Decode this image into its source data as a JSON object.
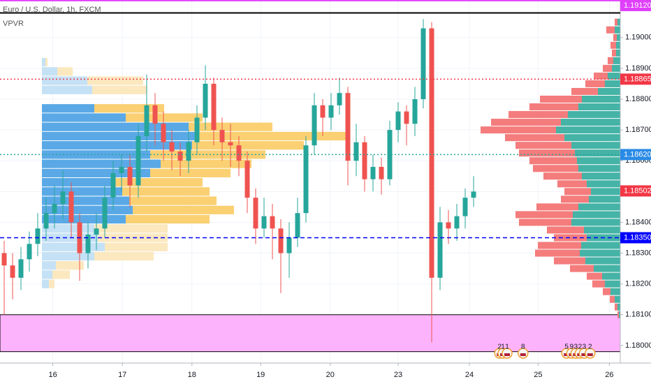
{
  "chart_data": {
    "type": "candlestick",
    "title": "Euro / U.S. Dollar, 1h, FXCM",
    "subtitle": "VPVR",
    "xlim": [
      0,
      74
    ],
    "ylim": [
      1.17943,
      1.19122
    ],
    "grid": true,
    "up_color": "#26a69a",
    "down_color": "#ef5350",
    "xticks": [
      {
        "value": 6.3,
        "label": "16"
      },
      {
        "value": 14.6,
        "label": "17"
      },
      {
        "value": 22.9,
        "label": "18"
      },
      {
        "value": 31.1,
        "label": "19"
      },
      {
        "value": 39.4,
        "label": "20"
      },
      {
        "value": 47.5,
        "label": "23"
      },
      {
        "value": 56,
        "label": "24"
      },
      {
        "value": 64.2,
        "label": "25"
      },
      {
        "value": 72.7,
        "label": "26"
      }
    ],
    "yticks": [
      {
        "value": 1.18,
        "label": "1.18000"
      },
      {
        "value": 1.181,
        "label": "1.18100"
      },
      {
        "value": 1.182,
        "label": "1.18200"
      },
      {
        "value": 1.183,
        "label": "1.18300"
      },
      {
        "value": 1.184,
        "label": "1.18400"
      },
      {
        "value": 1.185,
        "label": "1.18500"
      },
      {
        "value": 1.186,
        "label": "1.18600"
      },
      {
        "value": 1.187,
        "label": "1.18700"
      },
      {
        "value": 1.188,
        "label": "1.18800"
      },
      {
        "value": 1.189,
        "label": "1.18900"
      },
      {
        "value": 1.19,
        "label": "1.19000"
      }
    ],
    "x": [
      0.5,
      1.5,
      2.5,
      3.5,
      4.5,
      5.5,
      6.5,
      7.5,
      8.5,
      9.5,
      10.5,
      11.5,
      12.5,
      13.5,
      14.5,
      15.5,
      16.5,
      17.5,
      18.5,
      19.5,
      20.5,
      21.5,
      22.5,
      23.5,
      24.5,
      25.5,
      26.5,
      27.5,
      28.5,
      29.5,
      30.5,
      31.5,
      32.5,
      33.5,
      34.5,
      35.5,
      36.5,
      37.5,
      38.5,
      39.5,
      40.5,
      41.5,
      42.5,
      43.5,
      44.5,
      45.5,
      46.5,
      47.5,
      48.5,
      49.5,
      50.5,
      51.5,
      52.5,
      53.5,
      54.5,
      55.5,
      56.5
    ],
    "open": [
      1.183,
      1.1826,
      1.1822,
      1.1828,
      1.1833,
      1.1838,
      1.1843,
      1.1846,
      1.185,
      1.184,
      1.183,
      1.1836,
      1.1838,
      1.1848,
      1.1856,
      1.1858,
      1.1852,
      1.1868,
      1.1878,
      1.1872,
      1.1866,
      1.1863,
      1.186,
      1.1866,
      1.1874,
      1.1885,
      1.187,
      1.1866,
      1.1865,
      1.186,
      1.1848,
      1.1838,
      1.1842,
      1.1838,
      1.183,
      1.1835,
      1.1843,
      1.1865,
      1.1878,
      1.1874,
      1.1878,
      1.1882,
      1.186,
      1.1866,
      1.1854,
      1.1858,
      1.1854,
      1.187,
      1.1876,
      1.1872,
      1.188,
      1.1903,
      1.1822,
      1.184,
      1.1838,
      1.1842,
      1.1848
    ],
    "high": [
      1.1834,
      1.183,
      1.1832,
      1.1837,
      1.1843,
      1.1848,
      1.1852,
      1.1857,
      1.1853,
      1.1843,
      1.184,
      1.1843,
      1.1852,
      1.186,
      1.1862,
      1.1862,
      1.1872,
      1.1888,
      1.1882,
      1.1876,
      1.187,
      1.1866,
      1.187,
      1.1878,
      1.1891,
      1.1887,
      1.1874,
      1.1872,
      1.1868,
      1.1863,
      1.1851,
      1.1848,
      1.1846,
      1.1841,
      1.184,
      1.1848,
      1.1868,
      1.1882,
      1.188,
      1.1882,
      1.1887,
      1.1884,
      1.1872,
      1.1868,
      1.1862,
      1.1861,
      1.1873,
      1.1879,
      1.1878,
      1.1884,
      1.1906,
      1.1905,
      1.1845,
      1.1844,
      1.1846,
      1.1851,
      1.1855
    ],
    "low": [
      1.181,
      1.1815,
      1.1818,
      1.1824,
      1.1829,
      1.1834,
      1.1838,
      1.1841,
      1.1835,
      1.1821,
      1.1825,
      1.1831,
      1.1835,
      1.1844,
      1.185,
      1.1845,
      1.1848,
      1.1863,
      1.1865,
      1.186,
      1.1857,
      1.1855,
      1.1856,
      1.1862,
      1.187,
      1.1865,
      1.186,
      1.1858,
      1.1855,
      1.1843,
      1.1833,
      1.1835,
      1.1828,
      1.1817,
      1.1822,
      1.1832,
      1.184,
      1.1862,
      1.1868,
      1.187,
      1.1875,
      1.1852,
      1.1855,
      1.185,
      1.185,
      1.1849,
      1.1852,
      1.1866,
      1.1865,
      1.1868,
      1.1877,
      1.1801,
      1.1818,
      1.1833,
      1.1834,
      1.1838,
      1.1845
    ],
    "close": [
      1.1826,
      1.1822,
      1.1828,
      1.1833,
      1.1838,
      1.1843,
      1.1846,
      1.185,
      1.184,
      1.183,
      1.1836,
      1.1838,
      1.1848,
      1.1856,
      1.1858,
      1.1852,
      1.1868,
      1.1878,
      1.1872,
      1.1866,
      1.1863,
      1.186,
      1.1866,
      1.1874,
      1.1885,
      1.187,
      1.1866,
      1.1865,
      1.186,
      1.1848,
      1.1838,
      1.1842,
      1.1838,
      1.183,
      1.1835,
      1.1843,
      1.1865,
      1.1878,
      1.1874,
      1.1878,
      1.1882,
      1.186,
      1.1866,
      1.1854,
      1.1858,
      1.1854,
      1.187,
      1.1876,
      1.1872,
      1.188,
      1.1903,
      1.1822,
      1.184,
      1.1838,
      1.1842,
      1.1848,
      1.185
    ],
    "volume_profile": {
      "xlim": [
        0,
        200
      ],
      "buy_color": "#45b3a6",
      "sell_color": "#f47c7c",
      "levels": [
        1.181,
        1.18125,
        1.1815,
        1.18175,
        1.182,
        1.18225,
        1.1825,
        1.18275,
        1.183,
        1.18325,
        1.1835,
        1.18375,
        1.184,
        1.18425,
        1.1845,
        1.18475,
        1.185,
        1.18525,
        1.1855,
        1.18575,
        1.186,
        1.18625,
        1.1865,
        1.18675,
        1.187,
        1.18725,
        1.1875,
        1.18775,
        1.188,
        1.18825,
        1.1885,
        1.18875,
        1.189,
        1.18925,
        1.1895,
        1.18975,
        1.19,
        1.19025,
        1.1905
      ],
      "buy": [
        2,
        4,
        8,
        14,
        22,
        26,
        38,
        50,
        58,
        56,
        48,
        52,
        70,
        68,
        60,
        45,
        42,
        48,
        55,
        60,
        62,
        65,
        70,
        80,
        92,
        85,
        75,
        60,
        55,
        32,
        22,
        18,
        12,
        10,
        6,
        6,
        5,
        8,
        4
      ],
      "sell": [
        2,
        4,
        7,
        11,
        18,
        22,
        34,
        45,
        64,
        62,
        47,
        53,
        75,
        82,
        60,
        40,
        38,
        42,
        55,
        65,
        68,
        80,
        80,
        85,
        108,
        100,
        85,
        70,
        60,
        38,
        28,
        20,
        13,
        8,
        6,
        8,
        5,
        12,
        4
      ]
    },
    "left_profile": {
      "xlim": [
        0,
        450
      ],
      "value_area": [
        1.184,
        1.1878
      ],
      "up_color": "#5aa9e6",
      "down_color": "#f9cb64",
      "up_color_outside": "#c5e1f5",
      "down_color_outside": "#fbe6b8",
      "levels": [
        1.182,
        1.1823,
        1.1826,
        1.1829,
        1.1832,
        1.1835,
        1.1838,
        1.1841,
        1.1844,
        1.1847,
        1.185,
        1.1853,
        1.1856,
        1.1859,
        1.1862,
        1.1865,
        1.1868,
        1.1871,
        1.1874,
        1.1877,
        1.1883,
        1.1886,
        1.1889,
        1.1892
      ],
      "up": [
        10,
        15,
        20,
        75,
        90,
        80,
        75,
        120,
        130,
        125,
        115,
        100,
        155,
        170,
        155,
        215,
        225,
        210,
        120,
        75,
        72,
        65,
        22,
        5
      ],
      "down": [
        8,
        25,
        40,
        85,
        90,
        100,
        105,
        120,
        145,
        125,
        125,
        130,
        115,
        130,
        165,
        160,
        215,
        120,
        110,
        100,
        78,
        80,
        22,
        3
      ]
    },
    "zone": {
      "from": 1.1798,
      "to": 1.181,
      "color": "#fdb3fc"
    },
    "price_lines": [
      {
        "value": 1.1912,
        "label": "1.19120",
        "color": "#e040fb",
        "style": "solid"
      },
      {
        "value": 1.1908,
        "color": "#000000",
        "style": "solid"
      },
      {
        "value": 1.18865,
        "label": "1.18865",
        "color": "#f23645",
        "style": "dotted"
      },
      {
        "value": 1.1862,
        "label": "1.18620",
        "color": "#2a8ae6",
        "style": "dotted",
        "line_color": "#26a69a"
      },
      {
        "value": 1.18502,
        "label": "1.18502",
        "color": "#f23645",
        "style": "none"
      },
      {
        "value": 1.1835,
        "label": "1.18350",
        "color": "#0000ff",
        "style": "dashed"
      }
    ],
    "events": [
      {
        "x": 59.6,
        "label": "2"
      },
      {
        "x": 60.0,
        "label": "1"
      },
      {
        "x": 60.5,
        "label": "1"
      },
      {
        "x": 62.4,
        "label": "8"
      },
      {
        "x": 67.6,
        "label": "5"
      },
      {
        "x": 68.2,
        "label": "9"
      },
      {
        "x": 68.7,
        "label": "3"
      },
      {
        "x": 69.2,
        "label": "2"
      },
      {
        "x": 69.7,
        "label": "3"
      },
      {
        "x": 70.4,
        "label": "2"
      }
    ]
  }
}
